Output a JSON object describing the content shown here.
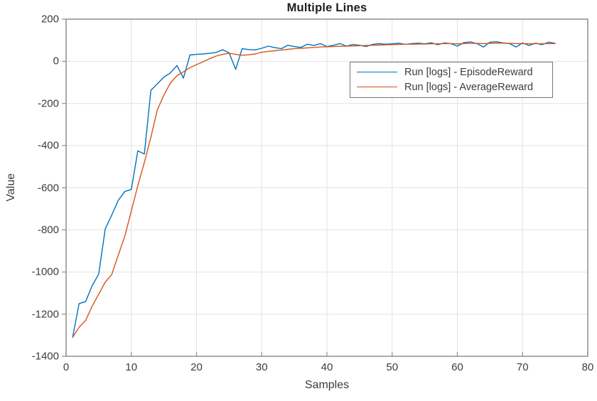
{
  "chart_data": {
    "type": "line",
    "title": "Multiple Lines",
    "xlabel": "Samples",
    "ylabel": "Value",
    "xlim": [
      0,
      80
    ],
    "ylim": [
      -1400,
      200
    ],
    "xticks": [
      0,
      10,
      20,
      30,
      40,
      50,
      60,
      70,
      80
    ],
    "yticks": [
      200,
      0,
      -200,
      -400,
      -600,
      -800,
      -1000,
      -1200,
      -1400
    ],
    "grid": true,
    "legend_position": "upper-right-inside",
    "axis_color": "#8f8f8f",
    "grid_color": "#e2e2e2",
    "x": [
      1,
      2,
      3,
      4,
      5,
      6,
      7,
      8,
      9,
      10,
      11,
      12,
      13,
      14,
      15,
      16,
      17,
      18,
      19,
      20,
      21,
      22,
      23,
      24,
      25,
      26,
      27,
      28,
      29,
      30,
      31,
      32,
      33,
      34,
      35,
      36,
      37,
      38,
      39,
      40,
      41,
      42,
      43,
      44,
      45,
      46,
      47,
      48,
      49,
      50,
      51,
      52,
      53,
      54,
      55,
      56,
      57,
      58,
      59,
      60,
      61,
      62,
      63,
      64,
      65,
      66,
      67,
      68,
      69,
      70,
      71,
      72,
      73,
      74,
      75
    ],
    "series": [
      {
        "name": "Run [logs] - EpisodeReward",
        "color": "#0072BD",
        "values": [
          -1310,
          -1150,
          -1140,
          -1065,
          -1010,
          -795,
          -730,
          -660,
          -618,
          -608,
          -425,
          -440,
          -138,
          -107,
          -75,
          -55,
          -20,
          -80,
          30,
          33,
          35,
          38,
          42,
          55,
          40,
          -38,
          60,
          56,
          54,
          62,
          72,
          65,
          60,
          76,
          70,
          66,
          81,
          75,
          84,
          70,
          76,
          84,
          72,
          80,
          76,
          70,
          80,
          84,
          81,
          83,
          86,
          80,
          84,
          86,
          83,
          88,
          79,
          87,
          84,
          72,
          89,
          92,
          84,
          68,
          91,
          93,
          87,
          84,
          68,
          87,
          75,
          86,
          79,
          91,
          85
        ]
      },
      {
        "name": "Run [logs] - AverageReward",
        "color": "#D95319",
        "values": [
          -1310,
          -1262,
          -1230,
          -1162,
          -1105,
          -1048,
          -1012,
          -920,
          -830,
          -710,
          -590,
          -480,
          -360,
          -230,
          -160,
          -103,
          -68,
          -50,
          -30,
          -16,
          -2,
          12,
          25,
          33,
          38,
          33,
          29,
          31,
          35,
          43,
          47,
          50,
          53,
          57,
          60,
          62,
          64,
          66,
          68,
          69,
          70,
          71,
          72,
          73,
          74,
          75,
          76,
          77,
          78,
          79,
          80,
          81,
          81,
          82,
          82,
          83,
          83,
          84,
          84,
          83,
          84,
          85,
          85,
          84,
          85,
          86,
          86,
          85,
          84,
          84,
          83,
          84,
          83,
          84,
          84
        ]
      }
    ]
  }
}
